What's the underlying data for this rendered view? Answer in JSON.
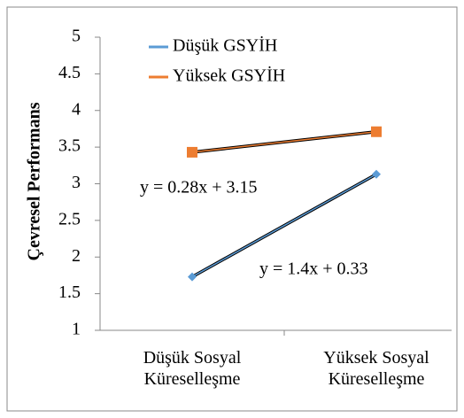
{
  "chart_data": {
    "type": "line",
    "y_label": "Çevresel Performans",
    "categories": [
      "Düşük Sosyal Küreselleşme",
      "Yüksek Sosyal Küreselleşme"
    ],
    "series": [
      {
        "name": "Düşük GSYİH",
        "color": "#5b9bd5",
        "values": [
          1.73,
          3.13
        ]
      },
      {
        "name": "Yüksek GSYİH",
        "color": "#ed7d31",
        "values": [
          3.43,
          3.71
        ]
      }
    ],
    "annotations": [
      "y = 0.28x + 3.15",
      "y = 1.4x + 0.33"
    ],
    "ylim": [
      1,
      5
    ],
    "yticks": [
      1,
      1.5,
      2,
      2.5,
      3,
      3.5,
      4,
      4.5,
      5
    ],
    "legend": "top"
  }
}
